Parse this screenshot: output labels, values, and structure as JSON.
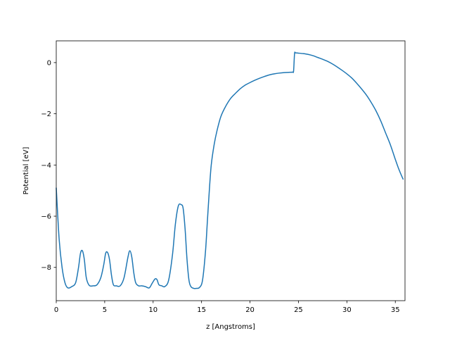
{
  "chart_data": {
    "type": "line",
    "title": "",
    "xlabel": "z [Angstroms]",
    "ylabel": "Potential [eV]",
    "xlim": [
      0,
      36
    ],
    "ylim": [
      -9.3,
      0.85
    ],
    "xticks": [
      0,
      5,
      10,
      15,
      20,
      25,
      30,
      35
    ],
    "yticks": [
      0,
      -2,
      -4,
      -6,
      -8
    ],
    "xtick_labels": [
      "0",
      "5",
      "10",
      "15",
      "20",
      "25",
      "30",
      "35"
    ],
    "ytick_labels": [
      "0",
      "−2",
      "−4",
      "−6",
      "−8"
    ],
    "grid": false,
    "legend": "none",
    "line_color": "#1f77b4",
    "series": [
      {
        "x": [
          0,
          0.3,
          0.6,
          0.9,
          1.2,
          1.6,
          2.0,
          2.3,
          2.5,
          2.7,
          2.9,
          3.1,
          3.4,
          3.8,
          4.2,
          4.6,
          4.9,
          5.1,
          5.3,
          5.5,
          5.7,
          5.9,
          6.2,
          6.6,
          7.0,
          7.4,
          7.6,
          7.8,
          8.0,
          8.2,
          8.5,
          8.8,
          9.2,
          9.6,
          9.9,
          10.2,
          10.4,
          10.6,
          10.9,
          11.2,
          11.6,
          12.0,
          12.3,
          12.6,
          12.9,
          13.1,
          13.3,
          13.5,
          13.7,
          13.9,
          14.2,
          14.5,
          14.8,
          15.1,
          15.4,
          15.6,
          15.8,
          16.0,
          16.3,
          16.6,
          17.0,
          17.5,
          18.0,
          18.5,
          19.0,
          19.5,
          20.0,
          20.5,
          21.0,
          21.5,
          22.0,
          22.5,
          23.0,
          23.5,
          24.0,
          24.4,
          24.5,
          24.6,
          24.7,
          25.0,
          25.5,
          26.0,
          26.5,
          27.0,
          27.5,
          28.0,
          28.5,
          29.0,
          29.5,
          30.0,
          30.5,
          31.0,
          31.5,
          32.0,
          32.5,
          33.0,
          33.5,
          34.0,
          34.5,
          35.0,
          35.3,
          35.6,
          35.8
        ],
        "y": [
          -4.9,
          -6.9,
          -8.0,
          -8.6,
          -8.8,
          -8.75,
          -8.6,
          -8.0,
          -7.45,
          -7.35,
          -7.7,
          -8.4,
          -8.7,
          -8.72,
          -8.68,
          -8.4,
          -7.9,
          -7.45,
          -7.42,
          -7.7,
          -8.3,
          -8.68,
          -8.72,
          -8.72,
          -8.4,
          -7.6,
          -7.35,
          -7.6,
          -8.2,
          -8.6,
          -8.72,
          -8.72,
          -8.75,
          -8.8,
          -8.62,
          -8.45,
          -8.48,
          -8.68,
          -8.72,
          -8.75,
          -8.5,
          -7.5,
          -6.3,
          -5.6,
          -5.55,
          -5.7,
          -6.5,
          -7.7,
          -8.5,
          -8.75,
          -8.82,
          -8.82,
          -8.78,
          -8.5,
          -7.4,
          -6.2,
          -5.0,
          -4.0,
          -3.2,
          -2.65,
          -2.1,
          -1.7,
          -1.4,
          -1.2,
          -1.02,
          -0.88,
          -0.78,
          -0.69,
          -0.61,
          -0.54,
          -0.48,
          -0.44,
          -0.41,
          -0.39,
          -0.38,
          -0.37,
          -0.32,
          0.35,
          0.38,
          0.37,
          0.35,
          0.32,
          0.27,
          0.2,
          0.13,
          0.05,
          -0.05,
          -0.17,
          -0.3,
          -0.44,
          -0.6,
          -0.8,
          -1.02,
          -1.26,
          -1.55,
          -1.88,
          -2.28,
          -2.75,
          -3.22,
          -3.78,
          -4.1,
          -4.38,
          -4.55
        ]
      }
    ]
  }
}
